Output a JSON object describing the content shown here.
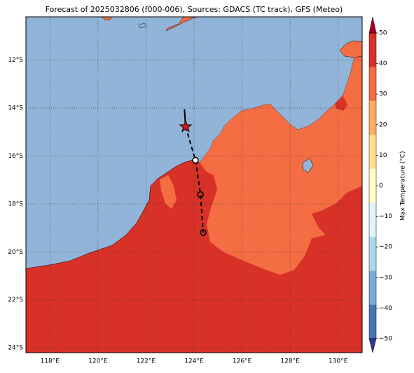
{
  "chart_data": {
    "type": "map",
    "title": "Forecast of 2025032806 (f000-006), Sources: GDACS (TC track), GFS (Meteo)",
    "xlim": [
      117,
      131
    ],
    "ylim": [
      -24.2,
      -10.2
    ],
    "xticks": [
      {
        "value": 118,
        "label": "118°E"
      },
      {
        "value": 120,
        "label": "120°E"
      },
      {
        "value": 122,
        "label": "122°E"
      },
      {
        "value": 124,
        "label": "124°E"
      },
      {
        "value": 126,
        "label": "126°E"
      },
      {
        "value": 128,
        "label": "128°E"
      },
      {
        "value": 130,
        "label": "130°E"
      }
    ],
    "yticks": [
      {
        "value": -12,
        "label": "12°S"
      },
      {
        "value": -14,
        "label": "14°S"
      },
      {
        "value": -16,
        "label": "16°S"
      },
      {
        "value": -18,
        "label": "18°S"
      },
      {
        "value": -20,
        "label": "20°S"
      },
      {
        "value": -22,
        "label": "22°S"
      },
      {
        "value": -24,
        "label": "24°S"
      }
    ],
    "grid": true,
    "track": {
      "lon": [
        123.6,
        123.65,
        124.06,
        124.27,
        124.38
      ],
      "lat": [
        -14.05,
        -14.78,
        -16.18,
        -17.61,
        -19.19
      ]
    },
    "colorbar": {
      "label": "Max Temperature (°C)",
      "clim": [
        -50,
        50
      ],
      "ticks": [
        50,
        40,
        30,
        20,
        10,
        0,
        {
          "value": -10,
          "label": "−10"
        },
        {
          "value": -20,
          "label": "−20"
        },
        {
          "value": -30,
          "label": "−30"
        },
        {
          "value": -40,
          "label": "−40"
        },
        {
          "value": -50,
          "label": "−50"
        }
      ],
      "colors": [
        "#313695",
        "#4575b4",
        "#74add1",
        "#abd9e9",
        "#e0f3f8",
        "#ffffbf",
        "#fee090",
        "#fdae61",
        "#f46d43",
        "#d73027",
        "#a50026"
      ]
    }
  }
}
